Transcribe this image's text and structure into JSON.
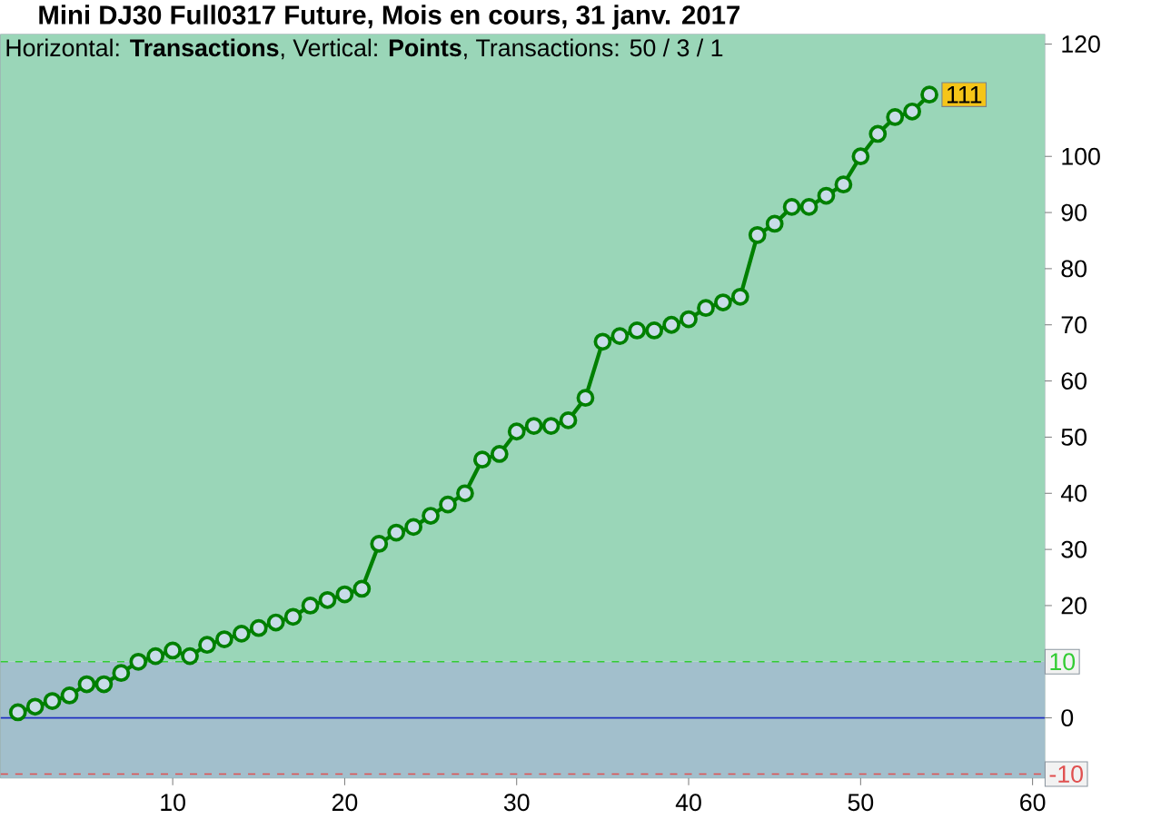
{
  "chart_data": {
    "type": "line",
    "title": "Mini DJ30 Full0317 Future, Mois en cours, 31 janv. 2017",
    "subtitle": "Horizontal: **Transactions**, Vertical: **Points**, Transactions: 50 / 3 / 1",
    "x": [
      1,
      2,
      3,
      4,
      5,
      6,
      7,
      8,
      9,
      10,
      11,
      12,
      13,
      14,
      15,
      16,
      17,
      18,
      19,
      20,
      21,
      22,
      23,
      24,
      25,
      26,
      27,
      28,
      29,
      30,
      31,
      32,
      33,
      34,
      35,
      36,
      37,
      38,
      39,
      40,
      41,
      42,
      43,
      44,
      45,
      46,
      47,
      48,
      49,
      50,
      51,
      52,
      53,
      54
    ],
    "series": [
      {
        "color": "#008000",
        "values": [
          1,
          2,
          3,
          4,
          6,
          6,
          8,
          10,
          11,
          12,
          11,
          13,
          14,
          15,
          16,
          17,
          18,
          20,
          21,
          22,
          23,
          31,
          33,
          34,
          36,
          38,
          40,
          46,
          47,
          51,
          52,
          52,
          53,
          57,
          67,
          68,
          69,
          69,
          70,
          71,
          73,
          74,
          75,
          86,
          88,
          91,
          91,
          93,
          95,
          100,
          104,
          107,
          108,
          111
        ],
        "value_labels": [
          null,
          null,
          null,
          null,
          null,
          null,
          null,
          null,
          null,
          null,
          null,
          null,
          null,
          null,
          null,
          null,
          null,
          null,
          null,
          null,
          null,
          null,
          null,
          null,
          null,
          null,
          null,
          null,
          null,
          null,
          null,
          null,
          null,
          null,
          null,
          null,
          null,
          null,
          null,
          null,
          null,
          null,
          null,
          null,
          null,
          null,
          null,
          null,
          null,
          null,
          null,
          null,
          null,
          "111"
        ]
      }
    ],
    "xlim": [
      0,
      60.7
    ],
    "ylim": [
      -10.7,
      121.7
    ],
    "xticks": [
      10,
      20,
      30,
      40,
      50,
      60
    ],
    "yticks": [
      0,
      20,
      30,
      40,
      50,
      60,
      70,
      80,
      90,
      100,
      120
    ],
    "grid": "x",
    "marker": "circle",
    "line_style": "solid",
    "bands": [
      {
        "axis": "y",
        "from": 10,
        "to": 121.7,
        "color": "#9ad6b8"
      },
      {
        "axis": "y",
        "from": -10.7,
        "to": 10,
        "color": "#a2bfcc"
      }
    ],
    "ref_lines": [
      {
        "axis": "y",
        "value": 10,
        "label": "10",
        "color": "#33cc33",
        "line_style": "dashed"
      },
      {
        "axis": "y",
        "value": 0,
        "color": "#2030c0",
        "line_style": "solid"
      },
      {
        "axis": "y",
        "value": -10,
        "label": "-10",
        "color": "#e05050",
        "line_style": "dashed"
      }
    ]
  }
}
